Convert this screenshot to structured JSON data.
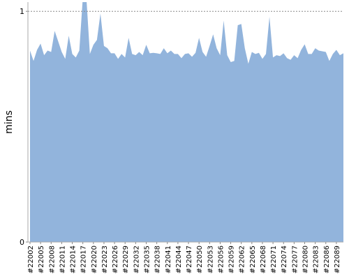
{
  "chart_data": {
    "type": "area",
    "y_label": "mins",
    "color": "#92b4dc",
    "categories": [
      "#22002",
      null,
      null,
      "#22005",
      null,
      null,
      "#22008",
      null,
      null,
      "#22011",
      null,
      null,
      "#22014",
      null,
      null,
      "#22017",
      null,
      null,
      "#22020",
      null,
      null,
      "#22023",
      null,
      null,
      "#22026",
      null,
      null,
      "#22029",
      null,
      null,
      "#22032",
      null,
      null,
      "#22035",
      null,
      null,
      "#22038",
      null,
      null,
      "#22041",
      null,
      null,
      "#22044",
      null,
      null,
      "#22047",
      null,
      null,
      "#22050",
      null,
      null,
      "#22053",
      null,
      null,
      "#22056",
      null,
      null,
      "#22059",
      null,
      null,
      "#22062",
      null,
      null,
      "#22065",
      null,
      null,
      "#22068",
      null,
      null,
      "#22071",
      null,
      null,
      "#22074",
      null,
      null,
      "#22077",
      null,
      null,
      "#22080",
      null,
      null,
      "#22083",
      null,
      null,
      "#22086",
      null,
      null,
      "#22089",
      null,
      null
    ],
    "values": [
      0.83,
      0.785,
      0.833,
      0.86,
      0.81,
      0.83,
      0.824,
      0.915,
      0.87,
      0.824,
      0.794,
      0.894,
      0.815,
      0.8,
      0.83,
      1.06,
      1.06,
      0.815,
      0.855,
      0.876,
      0.99,
      0.85,
      0.84,
      0.818,
      0.818,
      0.794,
      0.815,
      0.8,
      0.885,
      0.815,
      0.81,
      0.824,
      0.81,
      0.855,
      0.818,
      0.82,
      0.818,
      0.815,
      0.84,
      0.818,
      0.83,
      0.815,
      0.815,
      0.797,
      0.815,
      0.818,
      0.803,
      0.82,
      0.885,
      0.824,
      0.803,
      0.85,
      0.9,
      0.84,
      0.81,
      0.96,
      0.81,
      0.78,
      0.785,
      0.94,
      0.945,
      0.84,
      0.773,
      0.824,
      0.815,
      0.82,
      0.794,
      0.815,
      0.976,
      0.8,
      0.81,
      0.806,
      0.818,
      0.797,
      0.79,
      0.81,
      0.797,
      0.833,
      0.857,
      0.815,
      0.815,
      0.84,
      0.83,
      0.827,
      0.824,
      0.785,
      0.815,
      0.833,
      0.81,
      0.818
    ],
    "ylim": [
      0,
      1.04
    ],
    "yticks": [
      0,
      1
    ],
    "grid": true
  }
}
